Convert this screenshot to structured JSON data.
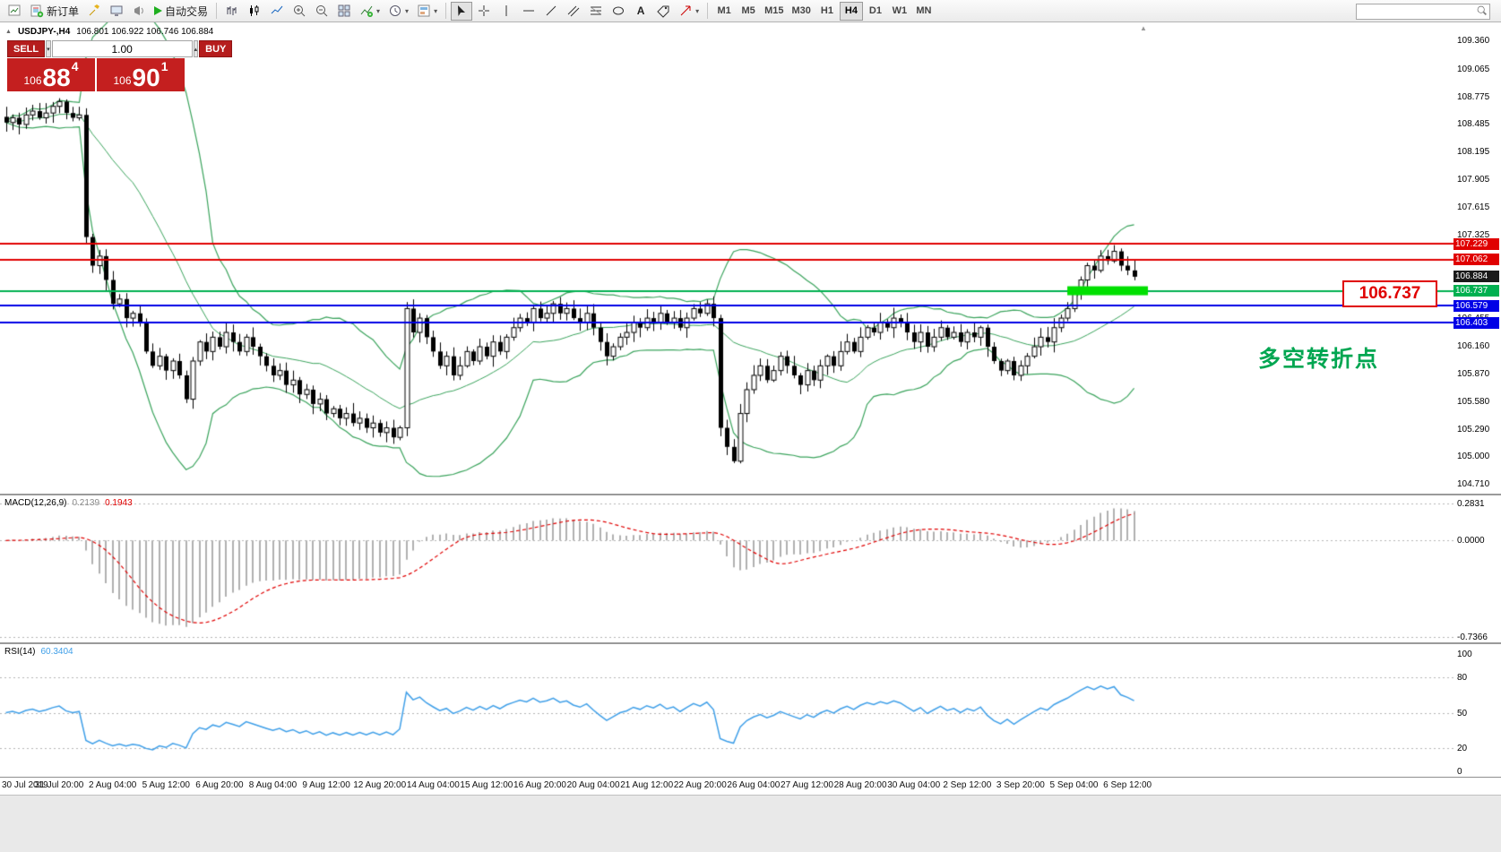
{
  "colors": {
    "red_line": "#e00000",
    "green_line": "#00b050",
    "blue_line": "#0000e6",
    "bands_green": "#3aa35c",
    "highlight_green": "#00e000",
    "macd_hist": "#b0b0b0",
    "macd_signal": "#e00000",
    "rsi_line": "#3f9fe8",
    "current_badge": "#1a1a1a",
    "note_green": "#00a651",
    "note_red": "#e00000",
    "panel_red": "#c41f1f"
  },
  "icons": {
    "caret": "▾",
    "toggle": "▲",
    "spin_up": "▴",
    "spin_down": "▾",
    "shift_marker": "▲",
    "text_tool_glyph": "A"
  },
  "toolbar": {
    "new_order_label": "新订单",
    "autotrading_label": "自动交易",
    "timeframes": [
      "M1",
      "M5",
      "M15",
      "M30",
      "H1",
      "H4",
      "D1",
      "W1",
      "MN"
    ],
    "active_timeframe": "H4",
    "search_placeholder": ""
  },
  "chart": {
    "symbol_period": "USDJPY-,H4",
    "ohlc": "106.801 106.922 106.746 106.884",
    "trade": {
      "sell_label": "SELL",
      "buy_label": "BUY",
      "lot_value": "1.00",
      "sell_price_small": "106",
      "sell_price_big": "88",
      "sell_price_sup": "4",
      "buy_price_small": "106",
      "buy_price_big": "90",
      "buy_price_sup": "1"
    },
    "scale_labels": [
      "109.360",
      "109.065",
      "108.775",
      "108.485",
      "108.195",
      "107.905",
      "107.615",
      "107.325",
      "107.035",
      "106.745",
      "106.455",
      "106.160",
      "105.870",
      "105.580",
      "105.290",
      "105.000",
      "104.710"
    ],
    "levels": [
      {
        "value": 107.229,
        "label": "107.229",
        "color": "#e00000",
        "width": 2
      },
      {
        "value": 107.062,
        "label": "107.062",
        "color": "#e00000",
        "width": 2
      },
      {
        "value": 106.737,
        "label": "106.737",
        "color": "#00b050",
        "width": 2
      },
      {
        "value": 106.579,
        "label": "106.579",
        "color": "#0000e6",
        "width": 2
      },
      {
        "value": 106.403,
        "label": "106.403",
        "color": "#0000e6",
        "width": 2
      }
    ],
    "current_price": {
      "value": 106.884,
      "label": "106.884"
    },
    "highlight": {
      "price": 106.737,
      "from_index": 159,
      "to_index": 170
    },
    "annotations": {
      "price_box_label": "106.737",
      "note_text": "多空转折点"
    }
  },
  "macd": {
    "title": "MACD(12,26,9)",
    "value_main": "0.2139",
    "value_signal": "0.1943",
    "scale": [
      "0.2831",
      "0.0000",
      "-0.7366"
    ]
  },
  "rsi": {
    "title": "RSI(14)",
    "value": "60.3404",
    "scale": [
      "100",
      "80",
      "50",
      "20",
      "0"
    ]
  },
  "time_axis": {
    "labels": [
      "30 Jul 2019",
      "31 Jul 20:00",
      "2 Aug 04:00",
      "5 Aug 12:00",
      "6 Aug 20:00",
      "8 Aug 04:00",
      "9 Aug 12:00",
      "12 Aug 20:00",
      "14 Aug 04:00",
      "15 Aug 12:00",
      "16 Aug 20:00",
      "20 Aug 04:00",
      "21 Aug 12:00",
      "22 Aug 20:00",
      "26 Aug 04:00",
      "27 Aug 12:00",
      "28 Aug 20:00",
      "30 Aug 04:00",
      "2 Sep 12:00",
      "3 Sep 20:00",
      "5 Sep 04:00",
      "6 Sep 12:00"
    ]
  },
  "chart_data": {
    "type": "candlestick",
    "symbol": "USDJPY-",
    "timeframe": "H4",
    "indicators": [
      "Bollinger Bands(20,2)",
      "MACD(12,26,9)",
      "RSI(14)"
    ],
    "y_range": [
      104.61,
      109.55
    ],
    "closes": [
      108.5,
      108.55,
      108.48,
      108.58,
      108.62,
      108.55,
      108.6,
      108.67,
      108.72,
      108.6,
      108.55,
      108.58,
      107.3,
      107.0,
      107.1,
      106.85,
      106.6,
      106.65,
      106.45,
      106.5,
      106.4,
      106.1,
      105.95,
      106.05,
      105.9,
      106.0,
      105.85,
      105.6,
      106.0,
      106.2,
      106.1,
      106.25,
      106.15,
      106.3,
      106.2,
      106.1,
      106.25,
      106.15,
      106.05,
      105.95,
      105.85,
      105.9,
      105.75,
      105.8,
      105.65,
      105.7,
      105.55,
      105.6,
      105.45,
      105.5,
      105.4,
      105.45,
      105.35,
      105.4,
      105.3,
      105.35,
      105.25,
      105.3,
      105.2,
      105.3,
      106.55,
      106.3,
      106.45,
      106.25,
      106.1,
      105.95,
      106.05,
      105.85,
      105.95,
      106.1,
      106.0,
      106.15,
      106.05,
      106.2,
      106.1,
      106.25,
      106.35,
      106.45,
      106.4,
      106.55,
      106.45,
      106.5,
      106.6,
      106.5,
      106.55,
      106.45,
      106.4,
      106.5,
      106.35,
      106.2,
      106.05,
      106.15,
      106.25,
      106.3,
      106.4,
      106.35,
      106.45,
      106.4,
      106.5,
      106.4,
      106.45,
      106.35,
      106.45,
      106.55,
      106.5,
      106.6,
      106.45,
      105.3,
      105.1,
      104.95,
      105.45,
      105.7,
      105.85,
      105.95,
      105.8,
      105.9,
      106.05,
      105.95,
      105.85,
      105.75,
      105.9,
      105.8,
      105.95,
      106.05,
      105.95,
      106.1,
      106.2,
      106.1,
      106.25,
      106.35,
      106.3,
      106.4,
      106.35,
      106.45,
      106.4,
      106.3,
      106.2,
      106.3,
      106.15,
      106.25,
      106.35,
      106.25,
      106.3,
      106.2,
      106.3,
      106.25,
      106.35,
      106.15,
      106.0,
      105.9,
      106.0,
      105.85,
      105.95,
      106.05,
      106.15,
      106.25,
      106.2,
      106.35,
      106.45,
      106.55,
      106.7,
      106.85,
      107.0,
      106.95,
      107.1,
      107.05,
      107.15,
      107.0,
      106.95,
      106.884
    ]
  }
}
